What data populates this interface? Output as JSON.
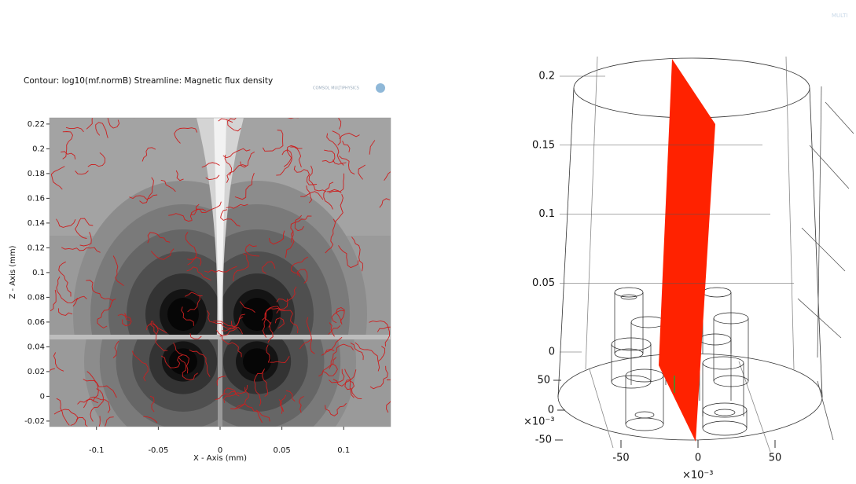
{
  "watermark": "MULTI",
  "chart_data": [
    {
      "type": "contour",
      "title": "Contour: log10(mf.normB)  Streamline: Magnetic flux density",
      "logo": "COMSOL MULTIPHYSICS",
      "xlabel": "X - Axis (mm)",
      "ylabel": "Z - Axis (mm)",
      "xlim": [
        -0.138,
        0.138
      ],
      "ylim": [
        -0.0245,
        0.225
      ],
      "xticks": [
        -0.1,
        -0.05,
        0,
        0.05,
        0.1
      ],
      "yticks": [
        -0.02,
        0,
        0.02,
        0.04,
        0.06,
        0.08,
        0.1,
        0.12,
        0.14,
        0.16,
        0.18,
        0.2,
        0.22
      ],
      "streamline_color": "#cc1f1f"
    },
    {
      "type": "3d",
      "zlim": [
        0,
        0.2
      ],
      "zticks": [
        0,
        0.05,
        0.1,
        0.15,
        0.2
      ],
      "xlim": [
        -50,
        50
      ],
      "xticks": [
        -50,
        0,
        50
      ],
      "x_multiplier": "×10⁻³",
      "ylim": [
        -50,
        50
      ],
      "yticks": [
        -50,
        0,
        50
      ],
      "y_multiplier": "×10⁻³",
      "plane_color": "#ff2200"
    }
  ]
}
